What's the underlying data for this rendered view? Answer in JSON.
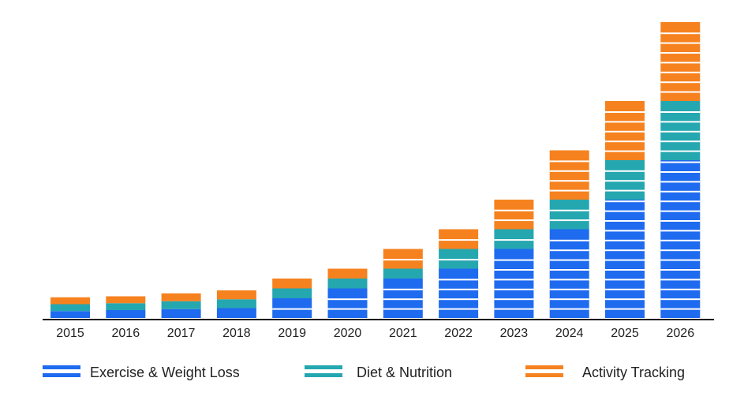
{
  "chart_data": {
    "type": "bar",
    "stacked": true,
    "categories": [
      "2015",
      "2016",
      "2017",
      "2018",
      "2019",
      "2020",
      "2021",
      "2022",
      "2023",
      "2024",
      "2025",
      "2026"
    ],
    "series": [
      {
        "name": "Exercise & Weight Loss",
        "color": "#1f6bf0",
        "values": [
          0.7,
          0.8,
          0.9,
          1.0,
          2.0,
          3.0,
          4.0,
          5.0,
          7.0,
          9.0,
          12.0,
          16.0
        ]
      },
      {
        "name": "Diet & Nutrition",
        "color": "#25a7b0",
        "values": [
          0.7,
          0.7,
          0.8,
          0.9,
          1.0,
          1.0,
          1.0,
          2.0,
          2.0,
          3.0,
          4.0,
          6.0
        ]
      },
      {
        "name": "Activity Tracking",
        "color": "#f6821f",
        "values": [
          0.7,
          0.7,
          0.8,
          0.9,
          1.0,
          1.0,
          2.0,
          2.0,
          3.0,
          5.0,
          6.0,
          8.0
        ]
      }
    ],
    "ylim": [
      0,
      30
    ],
    "grid": false,
    "legend_position": "bottom",
    "title": "",
    "xlabel": "",
    "ylabel": ""
  }
}
